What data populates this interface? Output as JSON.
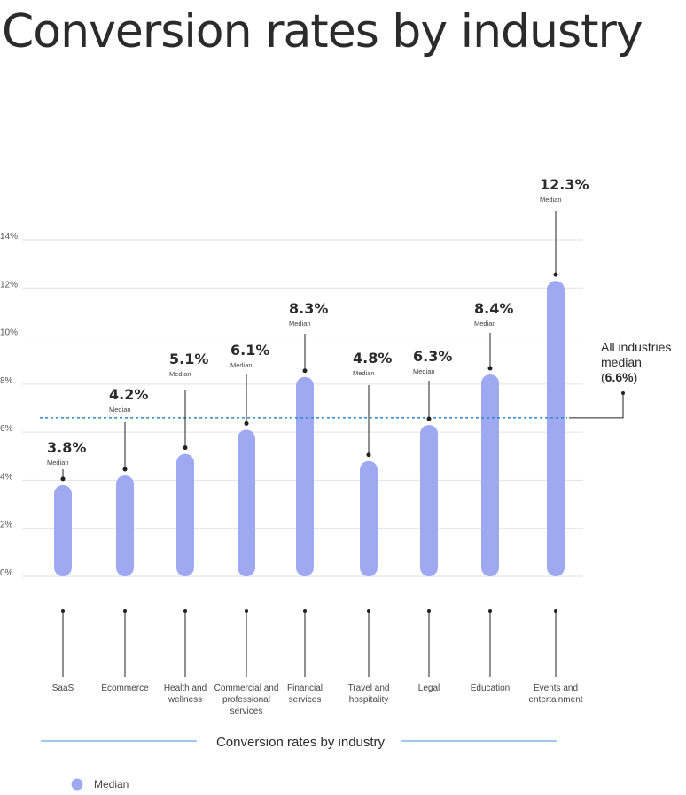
{
  "title": "Conversion rates by industry",
  "colors": {
    "bar": "#9FA9F1",
    "reference_line": "#2E86C8",
    "grid": "#E2E2E2",
    "leader": "#222222",
    "axis_title_line": "#3D8FD6"
  },
  "chart_data": {
    "type": "bar",
    "title": "Conversion rates by industry",
    "xlabel": "Conversion rates by industry",
    "ylabel": "",
    "ylim": [
      0,
      14
    ],
    "y_ticks": [
      "0%",
      "2%",
      "4%",
      "6%",
      "8%",
      "10%",
      "12%",
      "14%"
    ],
    "grid": true,
    "legend_placement": "bottom-left",
    "categories": [
      "SaaS",
      "Ecommerce",
      "Health and wellness",
      "Commercial and professional services",
      "Financial services",
      "Travel and hospitality",
      "Legal",
      "Education",
      "Events and entertainment"
    ],
    "category_lines": [
      [
        "SaaS"
      ],
      [
        "Ecommerce"
      ],
      [
        "Health and",
        "wellness"
      ],
      [
        "Commercial and",
        "professional",
        "services"
      ],
      [
        "Financial",
        "services"
      ],
      [
        "Travel and",
        "hospitality"
      ],
      [
        "Legal"
      ],
      [
        "Education"
      ],
      [
        "Events and",
        "entertainment"
      ]
    ],
    "series": [
      {
        "name": "Median",
        "values": [
          3.8,
          4.2,
          5.1,
          6.1,
          8.3,
          4.8,
          6.3,
          8.4,
          12.3
        ]
      }
    ],
    "value_labels": [
      "3.8%",
      "4.2%",
      "5.1%",
      "6.1%",
      "8.3%",
      "4.8%",
      "6.3%",
      "8.4%",
      "12.3%"
    ],
    "value_sublabel": "Median",
    "reference_line": {
      "value": 6.6,
      "label_lines": [
        "All industries",
        "median"
      ],
      "label_value": "6.6%"
    }
  }
}
